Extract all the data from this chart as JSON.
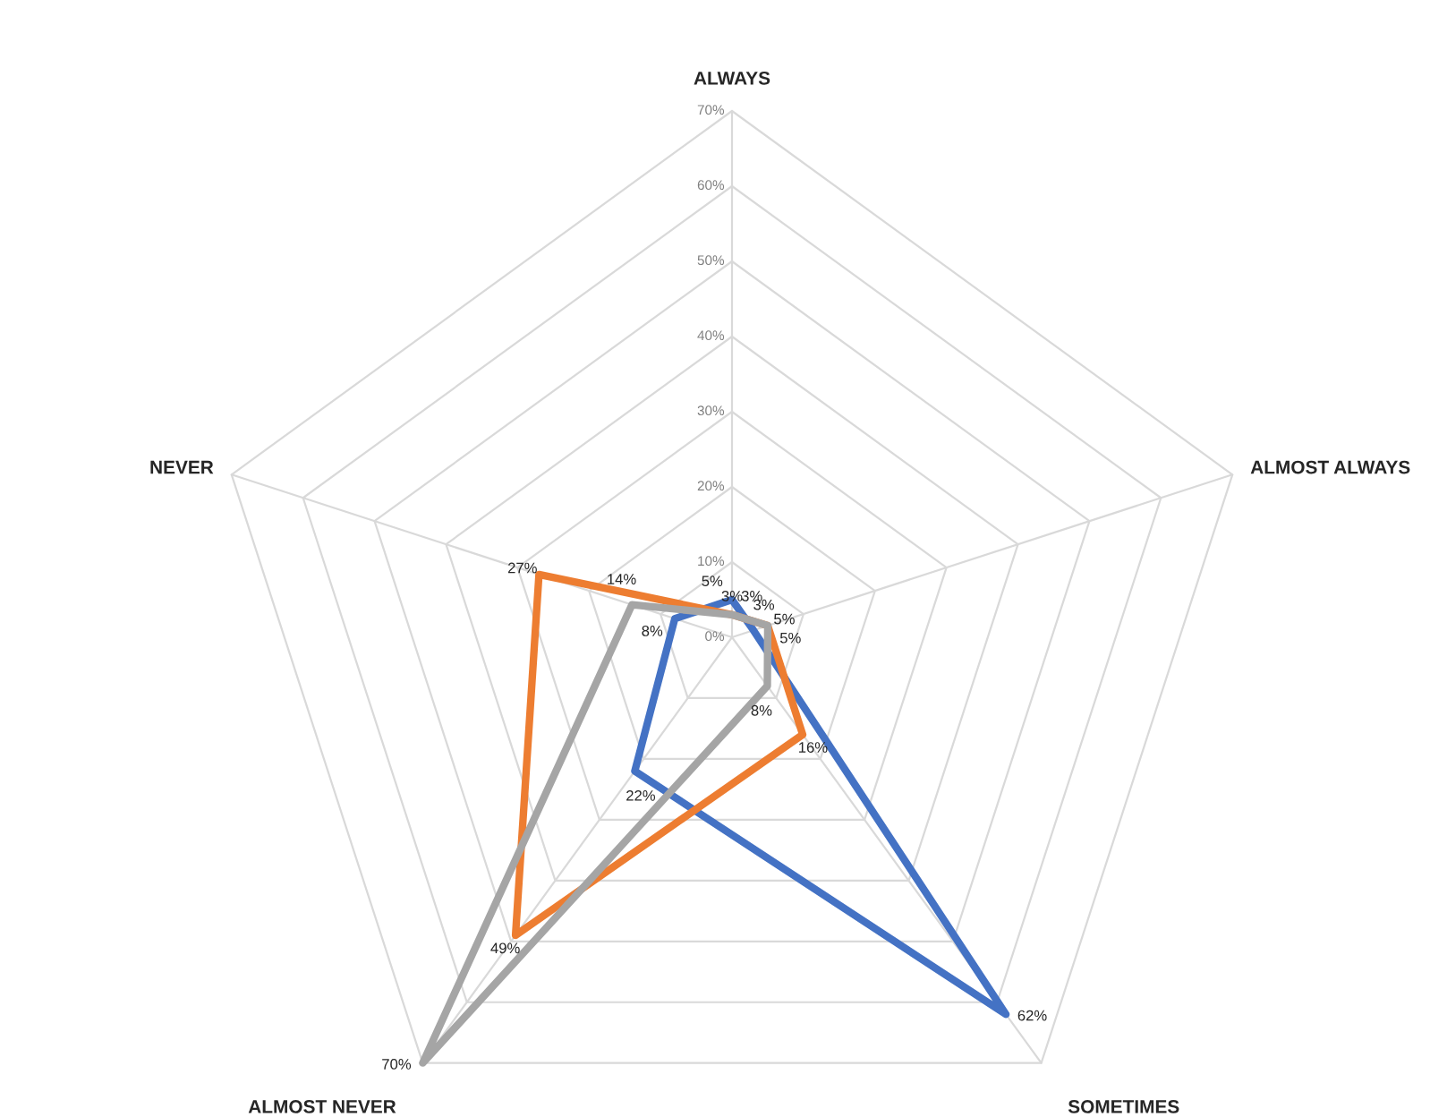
{
  "chart_data": {
    "type": "radar",
    "categories": [
      "ALWAYS",
      "ALMOST ALWAYS",
      "SOMETIMES",
      "ALMOST NEVER",
      "NEVER"
    ],
    "ylim": [
      0,
      70
    ],
    "yticks": [
      {
        "value": 0,
        "label": "0%"
      },
      {
        "value": 10,
        "label": "10%"
      },
      {
        "value": 20,
        "label": "20%"
      },
      {
        "value": 30,
        "label": "30%"
      },
      {
        "value": 40,
        "label": "40%"
      },
      {
        "value": 50,
        "label": "50%"
      },
      {
        "value": 60,
        "label": "60%"
      },
      {
        "value": 70,
        "label": "70%"
      }
    ],
    "series": [
      {
        "color": "#4472c4",
        "values": [
          5,
          3,
          62,
          22,
          8
        ],
        "value_labels": [
          "5%",
          "3%",
          "62%",
          "22%",
          "8%"
        ]
      },
      {
        "color": "#ed7d31",
        "values": [
          3,
          5,
          16,
          49,
          27
        ],
        "value_labels": [
          "3%",
          "5%",
          "16%",
          "49%",
          "27%"
        ]
      },
      {
        "color": "#a5a5a5",
        "values": [
          3,
          5,
          8,
          70,
          14
        ],
        "value_labels": [
          "3%",
          "5%",
          "8%",
          "70%",
          "14%"
        ]
      }
    ],
    "grid": true,
    "legend": false,
    "marker": "none",
    "line_style": "solid"
  }
}
